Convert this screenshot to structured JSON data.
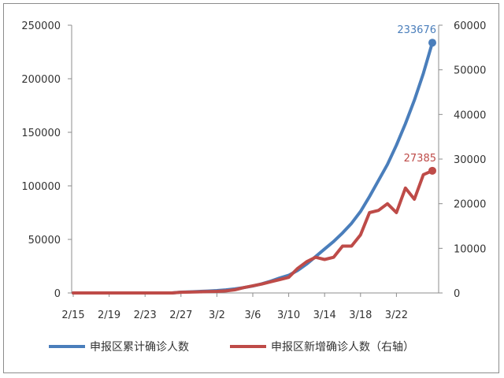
{
  "chart_data": {
    "type": "line",
    "title": "",
    "xlabel": "",
    "ylabel": "",
    "ylim": [
      0,
      250000
    ],
    "y2lim": [
      0,
      60000
    ],
    "y_ticks": [
      "0",
      "50000",
      "100000",
      "150000",
      "200000",
      "250000"
    ],
    "y2_ticks": [
      "0",
      "10000",
      "20000",
      "30000",
      "40000",
      "50000",
      "60000"
    ],
    "x_ticks": [
      "2/15",
      "2/19",
      "2/23",
      "2/27",
      "3/2",
      "3/6",
      "3/10",
      "3/14",
      "3/18",
      "3/22"
    ],
    "x": [
      "2/15",
      "2/16",
      "2/17",
      "2/18",
      "2/19",
      "2/20",
      "2/21",
      "2/22",
      "2/23",
      "2/24",
      "2/25",
      "2/26",
      "2/27",
      "2/28",
      "2/29",
      "3/1",
      "3/2",
      "3/3",
      "3/4",
      "3/5",
      "3/6",
      "3/7",
      "3/8",
      "3/9",
      "3/10",
      "3/11",
      "3/12",
      "3/13",
      "3/14",
      "3/15",
      "3/16",
      "3/17",
      "3/18",
      "3/19",
      "3/20",
      "3/21",
      "3/22",
      "3/23",
      "3/24",
      "3/25",
      "3/26"
    ],
    "legend_position": "bottom",
    "series": [
      {
        "name": "申报区累计确诊人数",
        "axis": "left",
        "color": "#4a7ebb",
        "end_label": "233676",
        "values": [
          0,
          0,
          0,
          0,
          0,
          0,
          0,
          0,
          0,
          0,
          0,
          0,
          700,
          1000,
          1400,
          1800,
          2200,
          2900,
          3800,
          5000,
          6500,
          8500,
          11000,
          14000,
          16500,
          21000,
          27000,
          34000,
          41000,
          48000,
          56000,
          65000,
          76000,
          90000,
          105000,
          120000,
          138000,
          158000,
          180000,
          205000,
          233676
        ]
      },
      {
        "name": "申报区新增确诊人数（右轴）",
        "axis": "right",
        "color": "#be4b48",
        "end_label": "27385",
        "values": [
          0,
          0,
          0,
          0,
          0,
          0,
          0,
          0,
          0,
          0,
          0,
          0,
          150,
          200,
          250,
          300,
          350,
          450,
          700,
          1200,
          1600,
          2000,
          2500,
          3000,
          3500,
          5500,
          7000,
          8000,
          7500,
          8000,
          10500,
          10500,
          13000,
          18000,
          18500,
          20000,
          18000,
          23500,
          21000,
          26500,
          27385
        ]
      }
    ]
  }
}
